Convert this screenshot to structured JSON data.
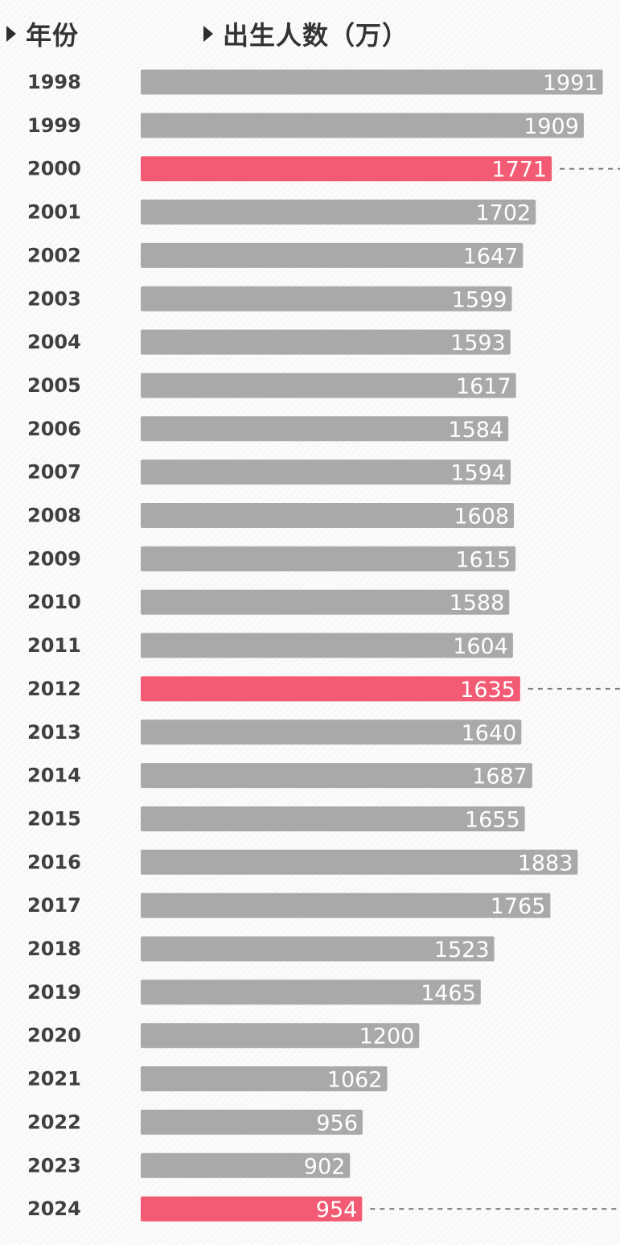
{
  "header": {
    "year_label": "年份",
    "births_label": "出生人数（万）"
  },
  "colors": {
    "normal_bar": "#a9a9a9",
    "highlight_bar": "#f35b74",
    "leader_line": "#555555"
  },
  "chart_data": {
    "type": "bar",
    "orientation": "horizontal",
    "title": "",
    "xlabel": "出生人数（万）",
    "ylabel": "年份",
    "categories": [
      "1998",
      "1999",
      "2000",
      "2001",
      "2002",
      "2003",
      "2004",
      "2005",
      "2006",
      "2007",
      "2008",
      "2009",
      "2010",
      "2011",
      "2012",
      "2013",
      "2014",
      "2015",
      "2016",
      "2017",
      "2018",
      "2019",
      "2020",
      "2021",
      "2022",
      "2023",
      "2024"
    ],
    "values": [
      1991,
      1909,
      1771,
      1702,
      1647,
      1599,
      1593,
      1617,
      1584,
      1594,
      1608,
      1615,
      1588,
      1604,
      1635,
      1640,
      1687,
      1655,
      1883,
      1765,
      1523,
      1465,
      1200,
      1062,
      956,
      902,
      954
    ],
    "highlighted": [
      "2000",
      "2012",
      "2024"
    ],
    "grid": false,
    "legend": "none"
  }
}
